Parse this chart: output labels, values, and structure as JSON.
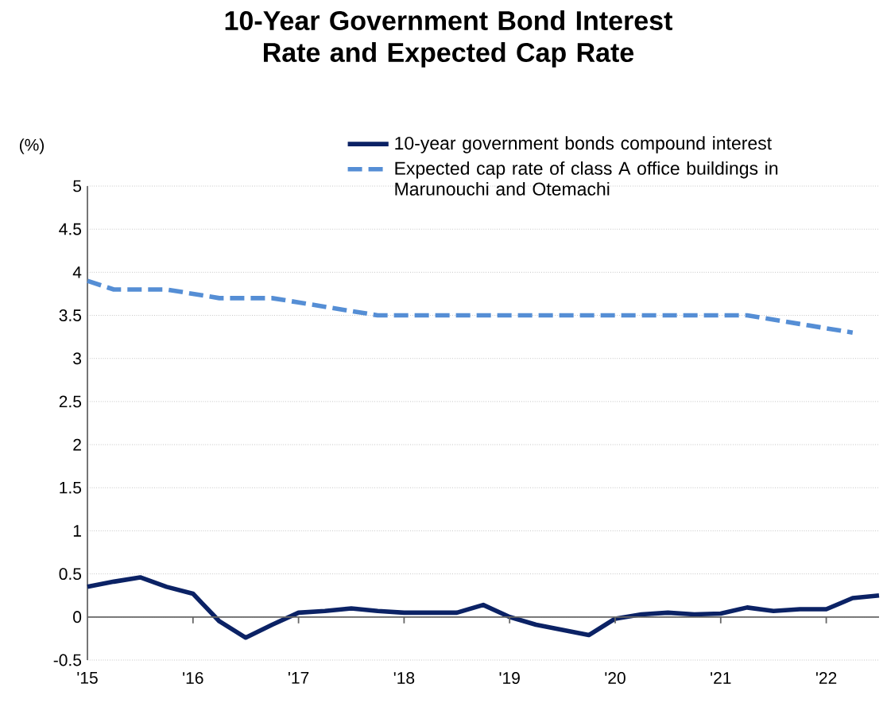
{
  "chart_data": {
    "type": "line",
    "title": "10-Year Government Bond Interest Rate and Expected Cap Rate",
    "ylabel": "(%)",
    "categories": [
      "'15",
      null,
      null,
      null,
      "'16",
      null,
      null,
      null,
      "'17",
      null,
      null,
      null,
      "'18",
      null,
      null,
      null,
      "'19",
      null,
      null,
      null,
      "'20",
      null,
      null,
      null,
      "'21",
      null,
      null,
      null,
      "'22",
      null,
      null
    ],
    "series": [
      {
        "name": "10-year government bonds compound interest",
        "color": "#0b2265",
        "line_style": "solid",
        "values": [
          0.35,
          0.41,
          0.46,
          0.35,
          0.27,
          -0.05,
          -0.24,
          -0.09,
          0.05,
          0.07,
          0.1,
          0.07,
          0.05,
          0.05,
          0.05,
          0.14,
          0.0,
          -0.09,
          -0.15,
          -0.21,
          -0.02,
          0.03,
          0.05,
          0.03,
          0.04,
          0.11,
          0.07,
          0.09,
          0.09,
          0.22,
          0.25
        ]
      },
      {
        "name": "Expected cap rate of class A office buildings in Marunouchi and Otemachi",
        "color": "#558ed5",
        "line_style": "dashed",
        "values": [
          3.9,
          3.8,
          3.8,
          3.8,
          3.75,
          3.7,
          3.7,
          3.7,
          3.65,
          3.6,
          3.55,
          3.5,
          3.5,
          3.5,
          3.5,
          3.5,
          3.5,
          3.5,
          3.5,
          3.5,
          3.5,
          3.5,
          3.5,
          3.5,
          3.5,
          3.5,
          3.45,
          3.4,
          3.35,
          3.3,
          null
        ]
      }
    ],
    "ylim": [
      -0.5,
      5
    ],
    "yticks": [
      -0.5,
      0,
      0.5,
      1,
      1.5,
      2,
      2.5,
      3,
      3.5,
      4,
      4.5,
      5
    ],
    "grid": "y",
    "legend": "top right",
    "marker": "none"
  }
}
